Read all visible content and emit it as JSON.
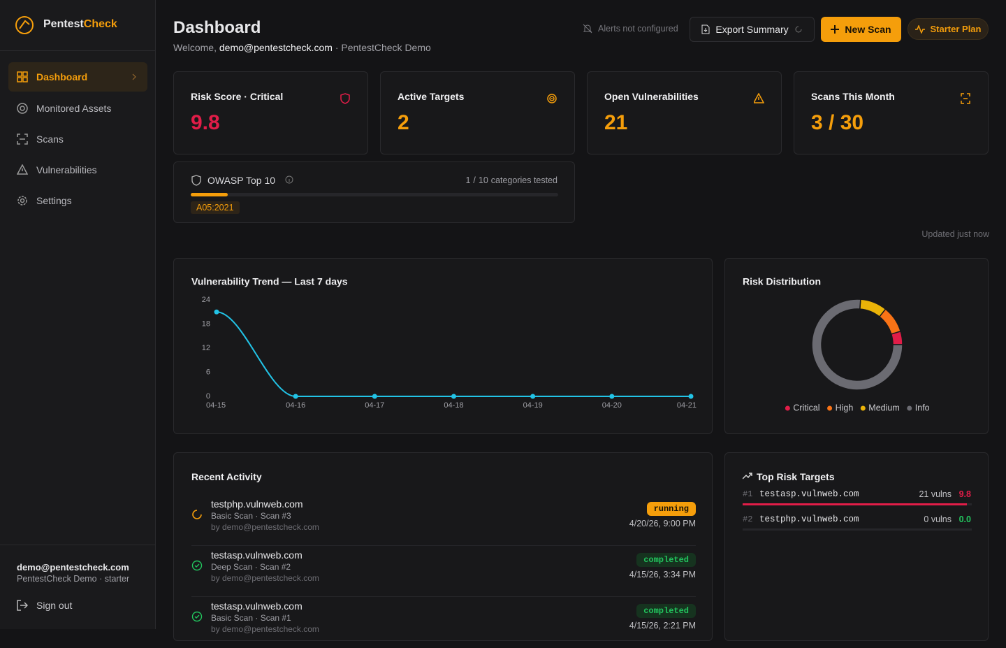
{
  "sidebar": {
    "brand": {
      "part1": "Pentest",
      "part2": "Check"
    },
    "nav": [
      "Dashboard",
      "Monitored Assets",
      "Scans",
      "Vulnerabilities",
      "Settings"
    ],
    "user": {
      "email": "demo@pentestcheck.com",
      "org": "PentestCheck Demo · starter"
    },
    "sign_out": "Sign out"
  },
  "header": {
    "title": "Dashboard",
    "welcome": "Welcome,",
    "email": "demo@pentestcheck.com",
    "org": "· PentestCheck Demo",
    "alerts": "Alerts not configured",
    "export": "Export Summary",
    "new_scan": "New Scan",
    "plan": "Starter Plan"
  },
  "stats": [
    {
      "label": "Risk Score · Critical",
      "value": "9.8"
    },
    {
      "label": "Active Targets",
      "value": "2"
    },
    {
      "label": "Open Vulnerabilities",
      "value": "21"
    },
    {
      "label": "Scans This Month",
      "value": "3 / 30"
    }
  ],
  "owasp": {
    "title": "OWASP Top 10",
    "tested": 1,
    "separator": "/",
    "total": 10,
    "unit": "categories tested",
    "tag": "A05:2021"
  },
  "updated": "Updated just now",
  "chart_data": [
    {
      "type": "line",
      "title": "Vulnerability Trend — Last 7 days",
      "categories": [
        "04-15",
        "04-16",
        "04-17",
        "04-18",
        "04-19",
        "04-20",
        "04-21"
      ],
      "values": [
        21,
        0,
        0,
        0,
        0,
        0,
        0
      ],
      "color": "#22c3e6",
      "ylim": [
        0,
        24
      ],
      "yticks": [
        0,
        6,
        12,
        18,
        24
      ]
    },
    {
      "type": "pie",
      "title": "Risk Distribution",
      "categories": [
        "Critical",
        "High",
        "Medium",
        "Info"
      ],
      "values": [
        1,
        2,
        2,
        16
      ],
      "colors": [
        "#e11d48",
        "#f97316",
        "#eab308",
        "#6b6b72"
      ]
    }
  ],
  "recent_activity": {
    "title": "Recent Activity",
    "items": [
      {
        "target": "testphp.vulnweb.com",
        "scan": "Basic Scan · Scan #3",
        "by": "by demo@pentestcheck.com",
        "status": "running",
        "time": "4/20/26, 9:00 PM"
      },
      {
        "target": "testasp.vulnweb.com",
        "scan": "Deep Scan · Scan #2",
        "by": "by demo@pentestcheck.com",
        "status": "completed",
        "time": "4/15/26, 3:34 PM"
      },
      {
        "target": "testasp.vulnweb.com",
        "scan": "Basic Scan · Scan #1",
        "by": "by demo@pentestcheck.com",
        "status": "completed",
        "time": "4/15/26, 2:21 PM"
      }
    ]
  },
  "top_risk": {
    "title": "Top Risk Targets",
    "items": [
      {
        "rank": "#1",
        "host": "testasp.vulnweb.com",
        "vulns": "21 vulns",
        "score": 9.8
      },
      {
        "rank": "#2",
        "host": "testphp.vulnweb.com",
        "vulns": "0 vulns",
        "score": 0,
        "score_label": "0.0"
      }
    ]
  }
}
